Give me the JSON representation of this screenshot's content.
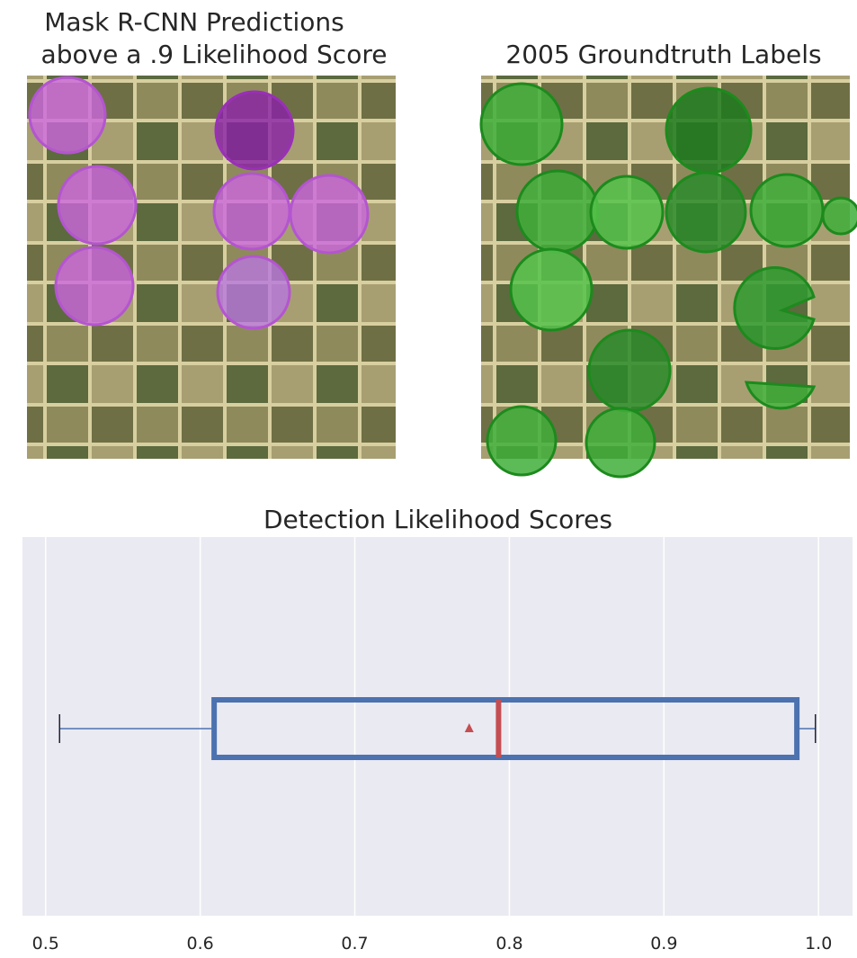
{
  "chart_data": [
    {
      "type": "image",
      "title": [
        "Mask R-CNN Predictions",
        "above a .9 Likelihood Score"
      ]
    },
    {
      "type": "image",
      "title": "2005 Groundtruth Labels"
    },
    {
      "type": "box",
      "title": "Detection Likelihood Scores",
      "box": {
        "whislo": 0.509,
        "q1": 0.609,
        "median": 0.793,
        "mean": 0.774,
        "q3": 0.986,
        "whishi": 0.998
      },
      "box_color": "#4c72b0",
      "median_color": "#c44e52",
      "mean_color": "#c44e52",
      "whisker_color": "#4c72b0",
      "xlim": [
        0.485,
        1.022
      ],
      "xticks": [
        0.5,
        0.6,
        0.7,
        0.8,
        0.9,
        {
          "value": 1,
          "label": "1.0"
        }
      ],
      "grid": true
    }
  ]
}
